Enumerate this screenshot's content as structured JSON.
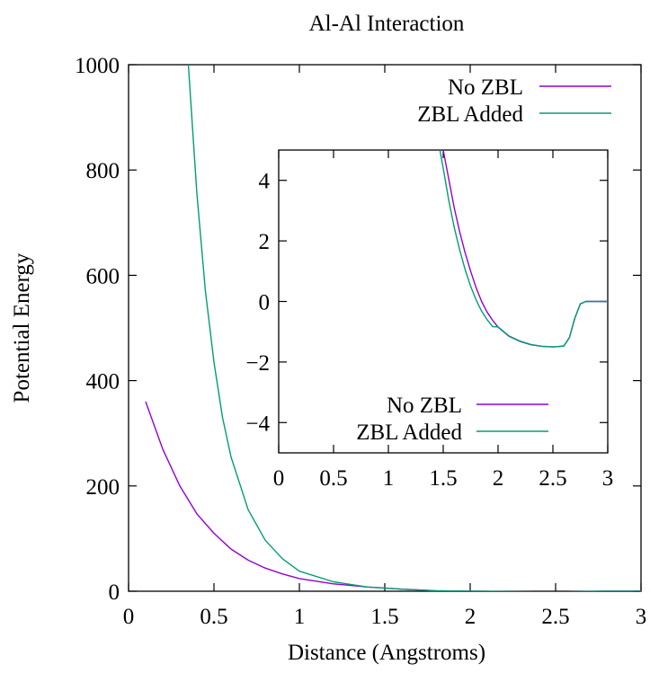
{
  "chart_data": [
    {
      "type": "line",
      "title": "Al-Al Interaction",
      "xlabel": "Distance (Angstroms)",
      "ylabel": "Potential Energy",
      "xlim": [
        0,
        3
      ],
      "ylim": [
        0,
        1000
      ],
      "x_ticks": [
        "0",
        "0.5",
        "1",
        "1.5",
        "2",
        "2.5",
        "3"
      ],
      "y_ticks": [
        "0",
        "200",
        "400",
        "600",
        "800",
        "1000"
      ],
      "grid": false,
      "legend_position": "top-right",
      "series": [
        {
          "name": "No ZBL",
          "color": "#9400d3",
          "x": [
            0.1,
            0.2,
            0.3,
            0.4,
            0.5,
            0.6,
            0.7,
            0.8,
            0.9,
            1.0,
            1.2,
            1.4,
            1.6,
            1.8,
            2.0,
            2.5,
            2.8,
            3.0
          ],
          "y": [
            360,
            270,
            200,
            147,
            110,
            80,
            59,
            44,
            33,
            24,
            14,
            8,
            4,
            1,
            0,
            -1.5,
            0,
            0
          ]
        },
        {
          "name": "ZBL Added",
          "color": "#009e73",
          "x": [
            0.35,
            0.4,
            0.45,
            0.5,
            0.55,
            0.6,
            0.7,
            0.8,
            0.9,
            1.0,
            1.2,
            1.4,
            1.6,
            1.8,
            2.0,
            2.5,
            2.8,
            3.0
          ],
          "y": [
            1000,
            755,
            570,
            435,
            330,
            255,
            155,
            97,
            62,
            38,
            18,
            8,
            4,
            1,
            0,
            -1.5,
            0,
            0
          ]
        }
      ]
    },
    {
      "type": "line",
      "title": "",
      "xlabel": "",
      "ylabel": "",
      "xlim": [
        0,
        3
      ],
      "ylim": [
        -5,
        5
      ],
      "x_ticks": [
        "0",
        "0.5",
        "1",
        "1.5",
        "2",
        "2.5",
        "3"
      ],
      "y_ticks": [
        "−4",
        "−2",
        "0",
        "2",
        "4"
      ],
      "y_tick_values": [
        -4,
        -2,
        0,
        2,
        4
      ],
      "grid": false,
      "legend_position": "bottom-right",
      "series": [
        {
          "name": "No ZBL",
          "color": "#9400d3",
          "x": [
            1.5,
            1.55,
            1.6,
            1.65,
            1.7,
            1.75,
            1.8,
            1.85,
            1.9,
            1.95,
            2.0,
            2.1,
            2.2,
            2.3,
            2.4,
            2.5,
            2.55,
            2.6,
            2.65,
            2.7,
            2.75,
            2.8,
            2.9,
            3.0
          ],
          "y": [
            5.0,
            4.05,
            3.1,
            2.3,
            1.6,
            1.0,
            0.45,
            0.0,
            -0.35,
            -0.62,
            -0.85,
            -1.15,
            -1.32,
            -1.43,
            -1.48,
            -1.5,
            -1.49,
            -1.47,
            -1.2,
            -0.55,
            -0.08,
            0.0,
            0.0,
            0.0
          ]
        },
        {
          "name": "ZBL Added",
          "color": "#009e73",
          "x": [
            1.47,
            1.5,
            1.55,
            1.6,
            1.65,
            1.7,
            1.75,
            1.8,
            1.85,
            1.9,
            1.95,
            2.0,
            2.1,
            2.2,
            2.3,
            2.4,
            2.5,
            2.55,
            2.6,
            2.65,
            2.7,
            2.75,
            2.8,
            2.9,
            3.0
          ],
          "y": [
            5.0,
            4.4,
            3.35,
            2.45,
            1.7,
            1.05,
            0.5,
            0.05,
            -0.32,
            -0.6,
            -0.83,
            -0.84,
            -1.14,
            -1.31,
            -1.42,
            -1.48,
            -1.5,
            -1.49,
            -1.47,
            -1.2,
            -0.55,
            -0.08,
            0.0,
            0.0,
            0.0
          ]
        }
      ]
    }
  ]
}
